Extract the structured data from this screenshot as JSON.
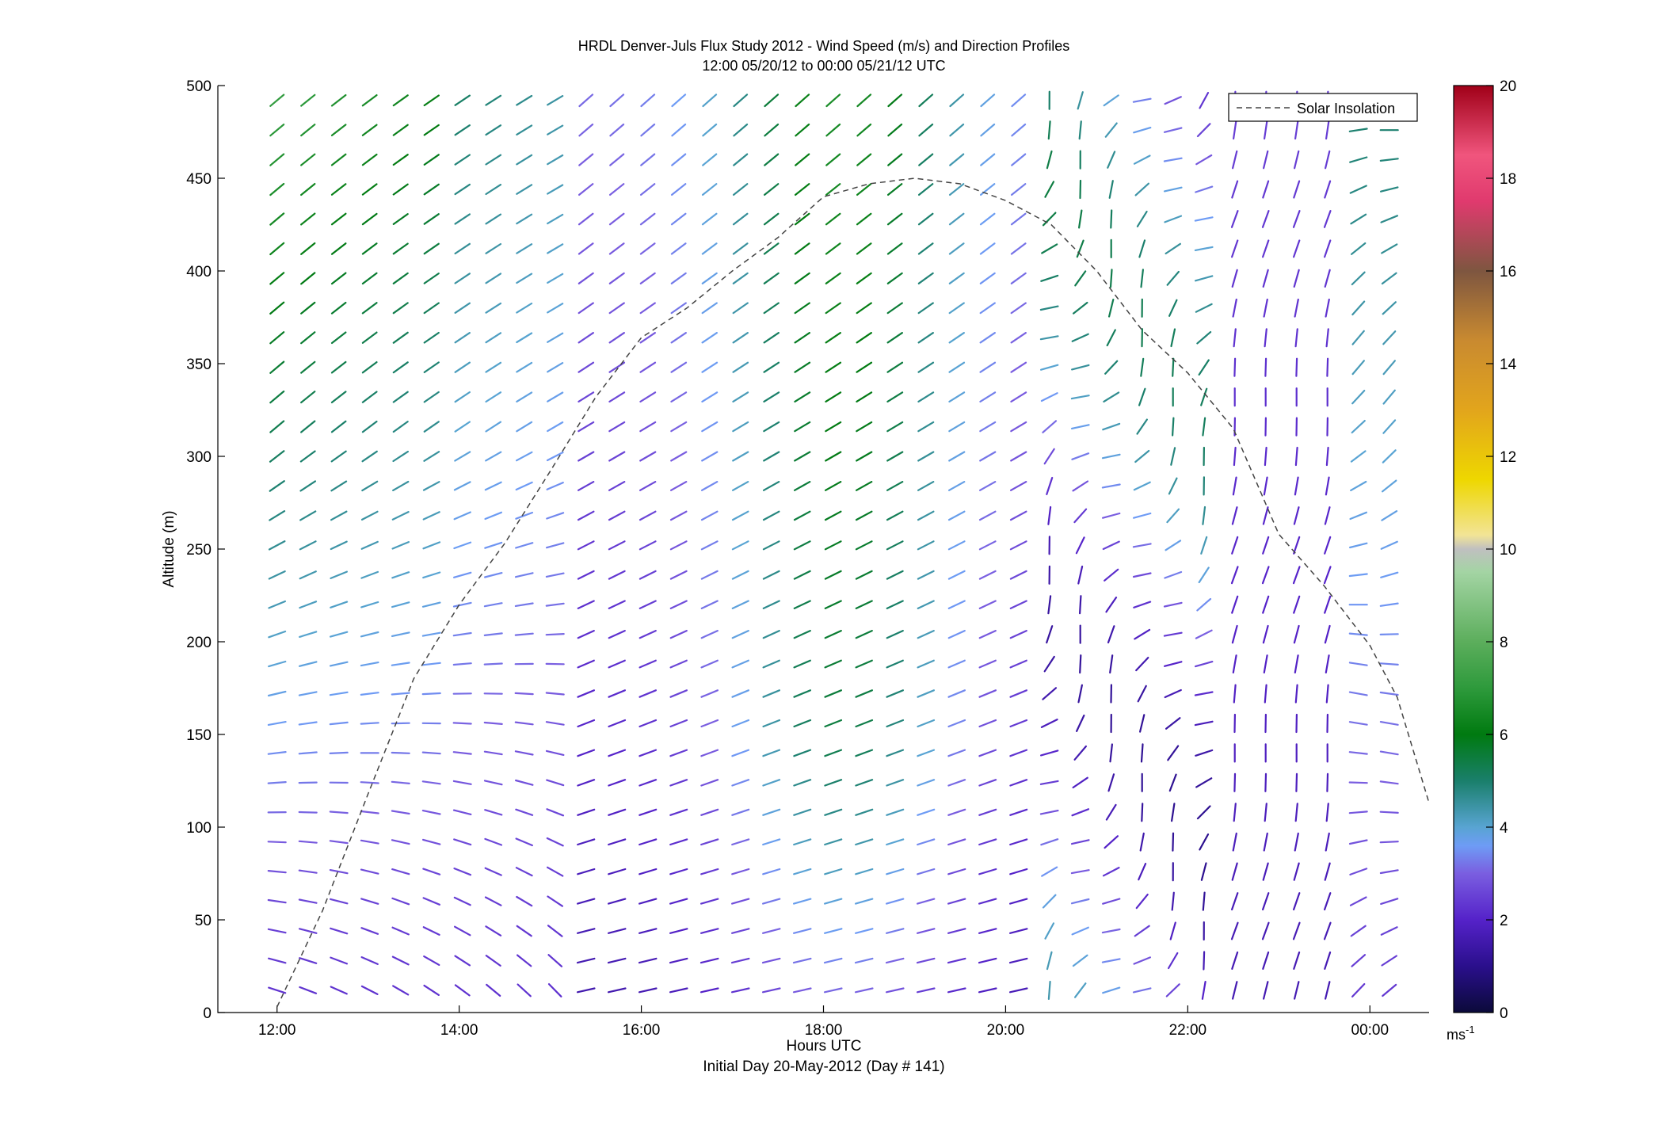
{
  "chart_data": {
    "type": "quiver",
    "title": "HRDL Denver-Juls Flux Study 2012 - Wind Speed (m/s) and Direction Profiles",
    "subtitle": "12:00 05/20/12 to 00:00 05/21/12  UTC",
    "xlabel": "Hours UTC",
    "xlabel2": "Initial Day 20-May-2012 (Day # 141)",
    "ylabel": "Altitude (m)",
    "colorbar_unit": "ms",
    "colorbar_unit_exp": "-1",
    "x_ticks": [
      {
        "hour": 12,
        "label": "12:00"
      },
      {
        "hour": 14,
        "label": "14:00"
      },
      {
        "hour": 16,
        "label": "16:00"
      },
      {
        "hour": 18,
        "label": "18:00"
      },
      {
        "hour": 20,
        "label": "20:00"
      },
      {
        "hour": 22,
        "label": "22:00"
      },
      {
        "hour": 24,
        "label": "00:00"
      }
    ],
    "xlim": [
      11.35,
      24.65
    ],
    "y_ticks": [
      0,
      50,
      100,
      150,
      200,
      250,
      300,
      350,
      400,
      450,
      500
    ],
    "ylim": [
      0,
      500
    ],
    "colorbar_ticks": [
      0,
      2,
      4,
      6,
      8,
      10,
      12,
      14,
      16,
      18,
      20
    ],
    "colorbar_range": [
      0,
      20
    ],
    "legend": {
      "label": "Solar Insolation",
      "position": "top-right"
    },
    "solar_insolation": {
      "x": [
        12.0,
        12.5,
        13.0,
        13.5,
        14.0,
        14.5,
        15.0,
        15.5,
        16.0,
        16.5,
        17.0,
        17.5,
        18.0,
        18.5,
        19.0,
        19.5,
        20.0,
        20.5,
        21.0,
        21.5,
        22.0,
        22.5,
        23.0,
        23.5,
        24.0,
        24.3,
        24.65
      ],
      "y": [
        3,
        55,
        118,
        180,
        220,
        253,
        292,
        332,
        364,
        380,
        400,
        418,
        440,
        447,
        450,
        447,
        438,
        425,
        400,
        368,
        345,
        315,
        258,
        230,
        198,
        170,
        113
      ]
    },
    "wind_speed_colors": [
      {
        "speed": 0,
        "color": "#0b0a3a"
      },
      {
        "speed": 1,
        "color": "#2a0f8c"
      },
      {
        "speed": 2,
        "color": "#5522c9"
      },
      {
        "speed": 3,
        "color": "#7a5ee0"
      },
      {
        "speed": 3.6,
        "color": "#6e9cf5"
      },
      {
        "speed": 4,
        "color": "#58a4d2"
      },
      {
        "speed": 5,
        "color": "#1a7f6b"
      },
      {
        "speed": 6,
        "color": "#007a10"
      },
      {
        "speed": 7,
        "color": "#2e9a3c"
      },
      {
        "speed": 8,
        "color": "#5cae5c"
      },
      {
        "speed": 9.5,
        "color": "#a3d4a3"
      },
      {
        "speed": 10,
        "color": "#c0c0c0"
      },
      {
        "speed": 10.3,
        "color": "#f2e496"
      },
      {
        "speed": 11.5,
        "color": "#eed700"
      },
      {
        "speed": 13,
        "color": "#e2a51c"
      },
      {
        "speed": 14.5,
        "color": "#c98a30"
      },
      {
        "speed": 16,
        "color": "#7e5640"
      },
      {
        "speed": 17.5,
        "color": "#e03a6e"
      },
      {
        "speed": 18.5,
        "color": "#f0557d"
      },
      {
        "speed": 20,
        "color": "#a00018"
      }
    ]
  }
}
